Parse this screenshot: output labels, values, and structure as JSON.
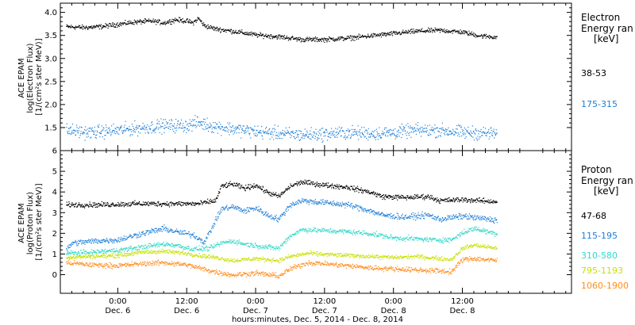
{
  "chart_data": [
    {
      "type": "scatter",
      "panel": "electron",
      "ylabel_lines": [
        "ACE EPAM",
        "log(Electron Flux)",
        "[1/(cm²s ster MeV)]"
      ],
      "ylim": [
        1.0,
        4.2
      ],
      "yticks": [
        1.5,
        2.0,
        2.5,
        3.0,
        3.5,
        4.0
      ],
      "ytick_labels": [
        "1.5",
        "2.0",
        "2.5",
        "3.0",
        "3.5",
        "4.0"
      ],
      "legend_title_lines": [
        "Electron",
        "Energy ran",
        "[keV]"
      ],
      "series": [
        {
          "name": "38-53",
          "color": "#000000",
          "keypoints": [
            [
              -9,
              3.7
            ],
            [
              -6,
              3.68
            ],
            [
              -3,
              3.7
            ],
            [
              0,
              3.75
            ],
            [
              3,
              3.8
            ],
            [
              6,
              3.82
            ],
            [
              8,
              3.78
            ],
            [
              10,
              3.85
            ],
            [
              12,
              3.82
            ],
            [
              13,
              3.78
            ],
            [
              14,
              3.88
            ],
            [
              15,
              3.72
            ],
            [
              17,
              3.65
            ],
            [
              20,
              3.6
            ],
            [
              24,
              3.52
            ],
            [
              28,
              3.48
            ],
            [
              32,
              3.42
            ],
            [
              36,
              3.42
            ],
            [
              40,
              3.45
            ],
            [
              44,
              3.5
            ],
            [
              48,
              3.55
            ],
            [
              52,
              3.6
            ],
            [
              56,
              3.62
            ],
            [
              60,
              3.58
            ],
            [
              63,
              3.5
            ],
            [
              66,
              3.47
            ]
          ],
          "noise": 0.025
        },
        {
          "name": "175-315",
          "color": "#1e7fd8",
          "keypoints": [
            [
              -9,
              1.45
            ],
            [
              -5,
              1.4
            ],
            [
              0,
              1.45
            ],
            [
              4,
              1.5
            ],
            [
              8,
              1.55
            ],
            [
              12,
              1.55
            ],
            [
              14,
              1.62
            ],
            [
              16,
              1.55
            ],
            [
              20,
              1.48
            ],
            [
              24,
              1.42
            ],
            [
              28,
              1.38
            ],
            [
              32,
              1.35
            ],
            [
              36,
              1.37
            ],
            [
              40,
              1.4
            ],
            [
              44,
              1.38
            ],
            [
              48,
              1.4
            ],
            [
              52,
              1.45
            ],
            [
              56,
              1.45
            ],
            [
              60,
              1.4
            ],
            [
              66,
              1.38
            ]
          ],
          "noise": 0.07
        }
      ]
    },
    {
      "type": "scatter",
      "panel": "proton",
      "ylabel_lines": [
        "ACE EPAM",
        "log(Proton Flux)",
        "[1/(cm²s ster MeV)]"
      ],
      "ylim": [
        -0.9,
        6.0
      ],
      "yticks": [
        0,
        1,
        2,
        3,
        4,
        5,
        6
      ],
      "ytick_labels": [
        "0",
        "1",
        "2",
        "3",
        "4",
        "5",
        "6"
      ],
      "legend_title_lines": [
        "Proton",
        "Energy ran",
        "[keV]"
      ],
      "series": [
        {
          "name": "47-68",
          "color": "#000000",
          "keypoints": [
            [
              -9,
              3.4
            ],
            [
              -3,
              3.4
            ],
            [
              3,
              3.45
            ],
            [
              9,
              3.45
            ],
            [
              14,
              3.45
            ],
            [
              17,
              3.6
            ],
            [
              18,
              4.3
            ],
            [
              20,
              4.4
            ],
            [
              22,
              4.2
            ],
            [
              24,
              4.35
            ],
            [
              26,
              4.0
            ],
            [
              28,
              3.8
            ],
            [
              30,
              4.3
            ],
            [
              32,
              4.5
            ],
            [
              36,
              4.35
            ],
            [
              40,
              4.25
            ],
            [
              44,
              4.0
            ],
            [
              46,
              3.8
            ],
            [
              50,
              3.75
            ],
            [
              54,
              3.8
            ],
            [
              56,
              3.6
            ],
            [
              60,
              3.65
            ],
            [
              66,
              3.55
            ]
          ],
          "noise": 0.06
        },
        {
          "name": "115-195",
          "color": "#1e7fd8",
          "keypoints": [
            [
              -9,
              1.2
            ],
            [
              -8,
              1.55
            ],
            [
              -4,
              1.65
            ],
            [
              0,
              1.7
            ],
            [
              4,
              2.0
            ],
            [
              8,
              2.25
            ],
            [
              10,
              2.1
            ],
            [
              13,
              1.95
            ],
            [
              15,
              1.6
            ],
            [
              16,
              2.1
            ],
            [
              18,
              3.2
            ],
            [
              20,
              3.3
            ],
            [
              22,
              3.1
            ],
            [
              24,
              3.25
            ],
            [
              26,
              2.9
            ],
            [
              28,
              2.7
            ],
            [
              30,
              3.4
            ],
            [
              32,
              3.6
            ],
            [
              36,
              3.5
            ],
            [
              40,
              3.4
            ],
            [
              44,
              3.1
            ],
            [
              46,
              2.9
            ],
            [
              50,
              2.8
            ],
            [
              54,
              2.9
            ],
            [
              56,
              2.7
            ],
            [
              60,
              2.85
            ],
            [
              66,
              2.65
            ]
          ],
          "noise": 0.07
        },
        {
          "name": "310-580",
          "color": "#30d8c8",
          "keypoints": [
            [
              -9,
              1.05
            ],
            [
              -5,
              1.1
            ],
            [
              0,
              1.2
            ],
            [
              4,
              1.35
            ],
            [
              8,
              1.5
            ],
            [
              10,
              1.45
            ],
            [
              13,
              1.25
            ],
            [
              16,
              1.3
            ],
            [
              18,
              1.55
            ],
            [
              20,
              1.65
            ],
            [
              22,
              1.5
            ],
            [
              26,
              1.35
            ],
            [
              28,
              1.3
            ],
            [
              30,
              1.9
            ],
            [
              32,
              2.2
            ],
            [
              36,
              2.15
            ],
            [
              40,
              2.1
            ],
            [
              44,
              2.0
            ],
            [
              48,
              1.8
            ],
            [
              52,
              1.75
            ],
            [
              55,
              1.7
            ],
            [
              58,
              1.7
            ],
            [
              60,
              2.05
            ],
            [
              62,
              2.25
            ],
            [
              66,
              2.0
            ]
          ],
          "noise": 0.06
        },
        {
          "name": "795-1193",
          "color": "#c8e000",
          "keypoints": [
            [
              -9,
              0.85
            ],
            [
              -5,
              0.9
            ],
            [
              0,
              0.95
            ],
            [
              4,
              1.1
            ],
            [
              8,
              1.15
            ],
            [
              12,
              1.05
            ],
            [
              14,
              0.95
            ],
            [
              17,
              0.85
            ],
            [
              20,
              0.7
            ],
            [
              24,
              0.8
            ],
            [
              28,
              0.7
            ],
            [
              30,
              0.9
            ],
            [
              33,
              1.05
            ],
            [
              36,
              1.0
            ],
            [
              40,
              0.95
            ],
            [
              44,
              0.9
            ],
            [
              48,
              0.85
            ],
            [
              52,
              0.9
            ],
            [
              56,
              0.8
            ],
            [
              58,
              0.75
            ],
            [
              60,
              1.3
            ],
            [
              62,
              1.45
            ],
            [
              66,
              1.3
            ]
          ],
          "noise": 0.05
        },
        {
          "name": "1060-1900",
          "color": "#ff8c1a",
          "keypoints": [
            [
              -9,
              0.6
            ],
            [
              -5,
              0.5
            ],
            [
              0,
              0.45
            ],
            [
              4,
              0.55
            ],
            [
              8,
              0.6
            ],
            [
              12,
              0.5
            ],
            [
              14,
              0.35
            ],
            [
              17,
              0.15
            ],
            [
              20,
              0.0
            ],
            [
              24,
              0.1
            ],
            [
              28,
              -0.05
            ],
            [
              30,
              0.3
            ],
            [
              33,
              0.6
            ],
            [
              36,
              0.55
            ],
            [
              40,
              0.45
            ],
            [
              44,
              0.35
            ],
            [
              48,
              0.3
            ],
            [
              52,
              0.25
            ],
            [
              56,
              0.2
            ],
            [
              58,
              0.15
            ],
            [
              60,
              0.75
            ],
            [
              62,
              0.8
            ],
            [
              66,
              0.7
            ]
          ],
          "noise": 0.06
        }
      ]
    }
  ],
  "x_axis": {
    "range_hours": [
      -10,
      79
    ],
    "ticks": [
      {
        "hour": 0,
        "time": "0:00",
        "date": "Dec. 6"
      },
      {
        "hour": 12,
        "time": "12:00",
        "date": "Dec. 6"
      },
      {
        "hour": 24,
        "time": "0:00",
        "date": "Dec. 7"
      },
      {
        "hour": 36,
        "time": "12:00",
        "date": "Dec. 7"
      },
      {
        "hour": 48,
        "time": "0:00",
        "date": "Dec. 8"
      },
      {
        "hour": 60,
        "time": "12:00",
        "date": "Dec. 8"
      }
    ],
    "xlabel": "hours:minutes, Dec.  5, 2014 - Dec.  8, 2014",
    "data_end_hour": 66
  }
}
